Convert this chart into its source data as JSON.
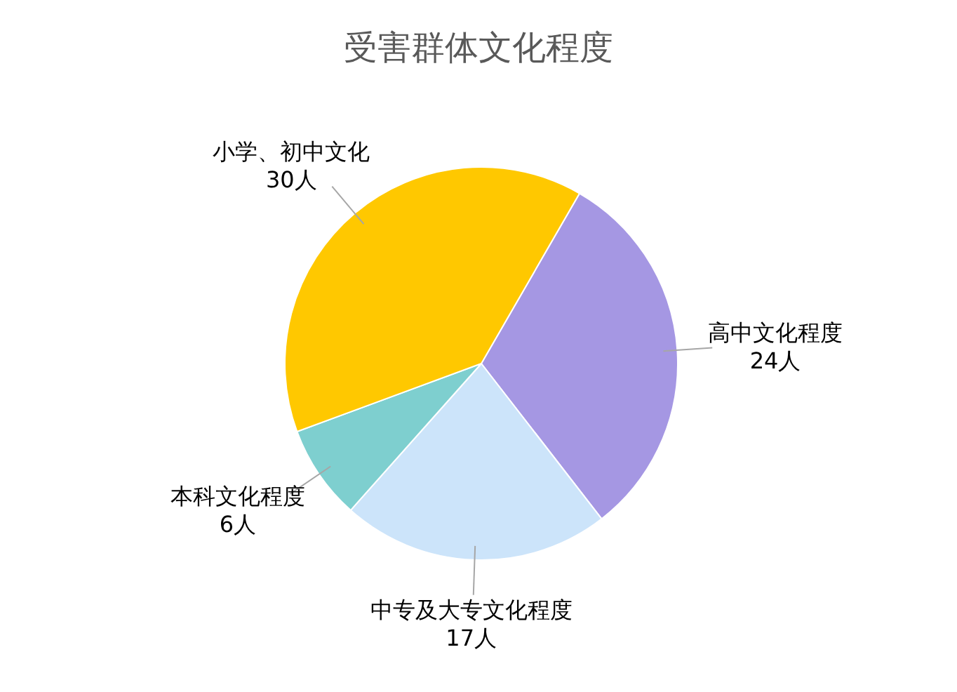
{
  "chart_data": {
    "type": "pie",
    "title": "受害群体文化程度",
    "categories": [
      "高中文化程度",
      "中专及大专文化程度",
      "本科文化程度",
      "小学、初中文化"
    ],
    "values": [
      24,
      17,
      6,
      30
    ],
    "colors": [
      "#a597e3",
      "#cce4fa",
      "#7ecfcf",
      "#ffc800"
    ],
    "value_labels": [
      "24人",
      "17人",
      "6人",
      "30人"
    ],
    "legend": false
  }
}
